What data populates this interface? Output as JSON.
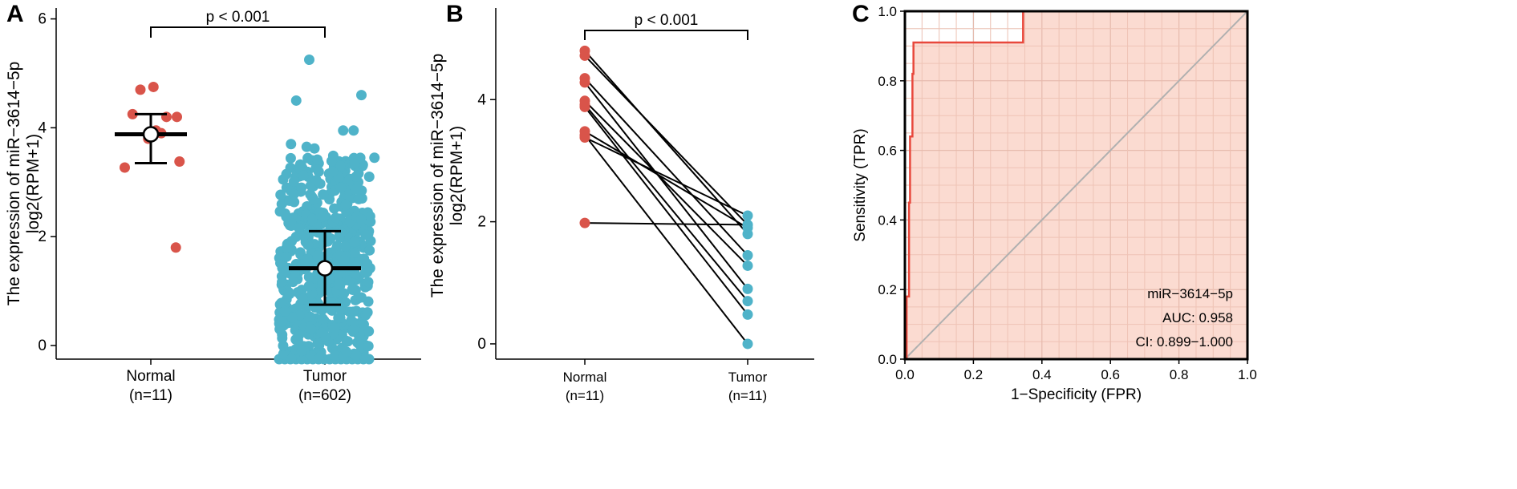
{
  "chart_data": [
    {
      "panel": "A",
      "type": "scatter",
      "ylabel_lines": [
        "The expression of miR−3614−5p",
        "log2(RPM+1)"
      ],
      "ylim": [
        -0.25,
        6.2
      ],
      "yticks": [
        0,
        2,
        4,
        6
      ],
      "yticklabels": [
        "0",
        "2",
        "4",
        "6"
      ],
      "categories": [
        "Normal",
        "Tumor"
      ],
      "category_labels": [
        [
          "Normal",
          "(n=11)"
        ],
        [
          "Tumor",
          "(n=602)"
        ]
      ],
      "colors": {
        "Normal": "#d9544a",
        "Tumor": "#4fb3c9"
      },
      "normal_points": [
        [
          -0.5,
          3.27
        ],
        [
          -0.35,
          4.25
        ],
        [
          -0.2,
          4.7
        ],
        [
          0.05,
          4.75
        ],
        [
          -0.05,
          3.8
        ],
        [
          0.1,
          3.95
        ],
        [
          0.3,
          4.2
        ],
        [
          0.5,
          4.2
        ],
        [
          0.55,
          3.38
        ],
        [
          0.48,
          1.8
        ],
        [
          0.2,
          3.9
        ]
      ],
      "tumor_points_shown": [
        [
          -0.3,
          5.25
        ],
        [
          -0.55,
          4.5
        ],
        [
          0.7,
          4.6
        ],
        [
          0.35,
          3.95
        ],
        [
          0.55,
          3.95
        ],
        [
          -0.65,
          3.7
        ],
        [
          -0.35,
          3.65
        ],
        [
          -0.2,
          3.62
        ],
        [
          0.95,
          3.45
        ],
        [
          0.3,
          3.3
        ],
        [
          -0.8,
          3.05
        ],
        [
          0.85,
          3.1
        ],
        [
          0.15,
          3.2
        ],
        [
          -0.45,
          2.9
        ]
      ],
      "tumor_floor_value": -0.25,
      "tumor_dense_range": [
        -0.25,
        3.5
      ],
      "summary": {
        "Normal": {
          "mean": 3.88,
          "sd_low": 3.35,
          "sd_high": 4.25
        },
        "Tumor": {
          "mean": 1.42,
          "sd_low": 0.75,
          "sd_high": 2.1
        }
      },
      "annotation": "p < 0.001"
    },
    {
      "panel": "B",
      "type": "line",
      "ylabel_lines": [
        "The expression of miR−3614−5p",
        "log2(RPM+1)"
      ],
      "ylim": [
        -0.25,
        5.5
      ],
      "yticks": [
        0,
        2,
        4
      ],
      "yticklabels": [
        "0",
        "2",
        "4"
      ],
      "category_labels": [
        [
          "Normal",
          "(n=11)"
        ],
        [
          "Tumor",
          "(n=11)"
        ]
      ],
      "colors": {
        "Normal": "#d9544a",
        "Tumor": "#4fb3c9"
      },
      "pairs": [
        [
          4.8,
          1.8
        ],
        [
          4.72,
          1.95
        ],
        [
          4.35,
          1.45
        ],
        [
          4.28,
          0.9
        ],
        [
          3.98,
          1.28
        ],
        [
          3.92,
          0.7
        ],
        [
          3.88,
          0.48
        ],
        [
          3.48,
          1.9
        ],
        [
          3.42,
          0.0
        ],
        [
          3.38,
          2.1
        ],
        [
          1.98,
          1.95
        ]
      ],
      "annotation": "p < 0.001"
    },
    {
      "panel": "C",
      "type": "line",
      "xlabel": "1−Specificity (FPR)",
      "ylabel": "Sensitivity (TPR)",
      "xlim": [
        0,
        1
      ],
      "ylim": [
        0,
        1
      ],
      "xticks": [
        0,
        0.2,
        0.4,
        0.6,
        0.8,
        1
      ],
      "xticklabels": [
        "0.0",
        "0.2",
        "0.4",
        "0.6",
        "0.8",
        "1.0"
      ],
      "yticks": [
        0,
        0.2,
        0.4,
        0.6,
        0.8,
        1
      ],
      "yticklabels": [
        "0.0",
        "0.2",
        "0.4",
        "0.6",
        "0.8",
        "1.0"
      ],
      "grid": true,
      "roc_x": [
        0,
        0.005,
        0.005,
        0.012,
        0.012,
        0.015,
        0.015,
        0.022,
        0.022,
        0.025,
        0.025,
        0.032,
        0.032,
        0.345,
        0.345,
        1
      ],
      "roc_y": [
        0,
        0,
        0.18,
        0.18,
        0.45,
        0.45,
        0.64,
        0.64,
        0.82,
        0.82,
        0.91,
        0.91,
        0.91,
        0.91,
        1.0,
        1.0
      ],
      "diagonal": true,
      "colors": {
        "roc": "#e8483c",
        "fill": "#f9cfc1",
        "diagonal": "#b0b0b0"
      },
      "legend_lines": [
        "miR−3614−5p",
        "AUC: 0.958",
        "CI: 0.899−1.000"
      ]
    }
  ]
}
